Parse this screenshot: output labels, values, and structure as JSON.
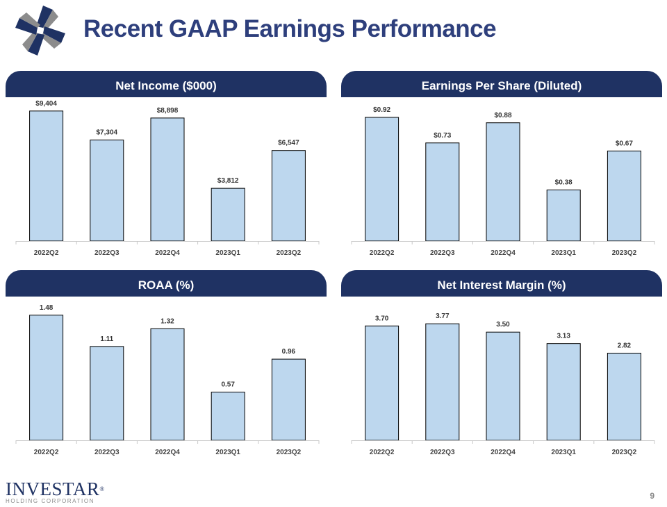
{
  "title": "Recent GAAP Earnings Performance",
  "colors": {
    "header": "#1f3263",
    "title": "#2e3f7c",
    "bar_fill": "#bdd7ee"
  },
  "chart_data": [
    {
      "type": "bar",
      "title": "Net Income ($000)",
      "categories": [
        "2022Q2",
        "2022Q3",
        "2022Q4",
        "2023Q1",
        "2023Q2"
      ],
      "values": [
        9404,
        7304,
        8898,
        3812,
        6547
      ],
      "labels": [
        "$9,404",
        "$7,304",
        "$8,898",
        "$3,812",
        "$6,547"
      ],
      "ylim": [
        0,
        10400
      ],
      "xlabel": "",
      "ylabel": "",
      "grid": false
    },
    {
      "type": "bar",
      "title": "Earnings Per Share (Diluted)",
      "categories": [
        "2022Q2",
        "2022Q3",
        "2022Q4",
        "2023Q1",
        "2023Q2"
      ],
      "values": [
        0.92,
        0.73,
        0.88,
        0.38,
        0.67
      ],
      "labels": [
        "$0.92",
        "$0.73",
        "$0.88",
        "$0.38",
        "$0.67"
      ],
      "ylim": [
        0,
        1.07
      ],
      "xlabel": "",
      "ylabel": "",
      "grid": false
    },
    {
      "type": "bar",
      "title": "ROAA (%)",
      "categories": [
        "2022Q2",
        "2022Q3",
        "2022Q4",
        "2023Q1",
        "2023Q2"
      ],
      "values": [
        1.48,
        1.11,
        1.32,
        0.57,
        0.96
      ],
      "labels": [
        "1.48",
        "1.11",
        "1.32",
        "0.57",
        "0.96"
      ],
      "ylim": [
        0,
        1.7
      ],
      "xlabel": "",
      "ylabel": "",
      "grid": false
    },
    {
      "type": "bar",
      "title": "Net Interest Margin (%)",
      "categories": [
        "2022Q2",
        "2022Q3",
        "2022Q4",
        "2023Q1",
        "2023Q2"
      ],
      "values": [
        3.7,
        3.77,
        3.5,
        3.13,
        2.82
      ],
      "labels": [
        "3.70",
        "3.77",
        "3.50",
        "3.13",
        "2.82"
      ],
      "ylim": [
        0,
        4.65
      ],
      "xlabel": "",
      "ylabel": "",
      "grid": false
    }
  ],
  "footer": {
    "company": "INVESTAR",
    "registered": "®",
    "subtitle": "HOLDING CORPORATION",
    "page_number": "9"
  }
}
